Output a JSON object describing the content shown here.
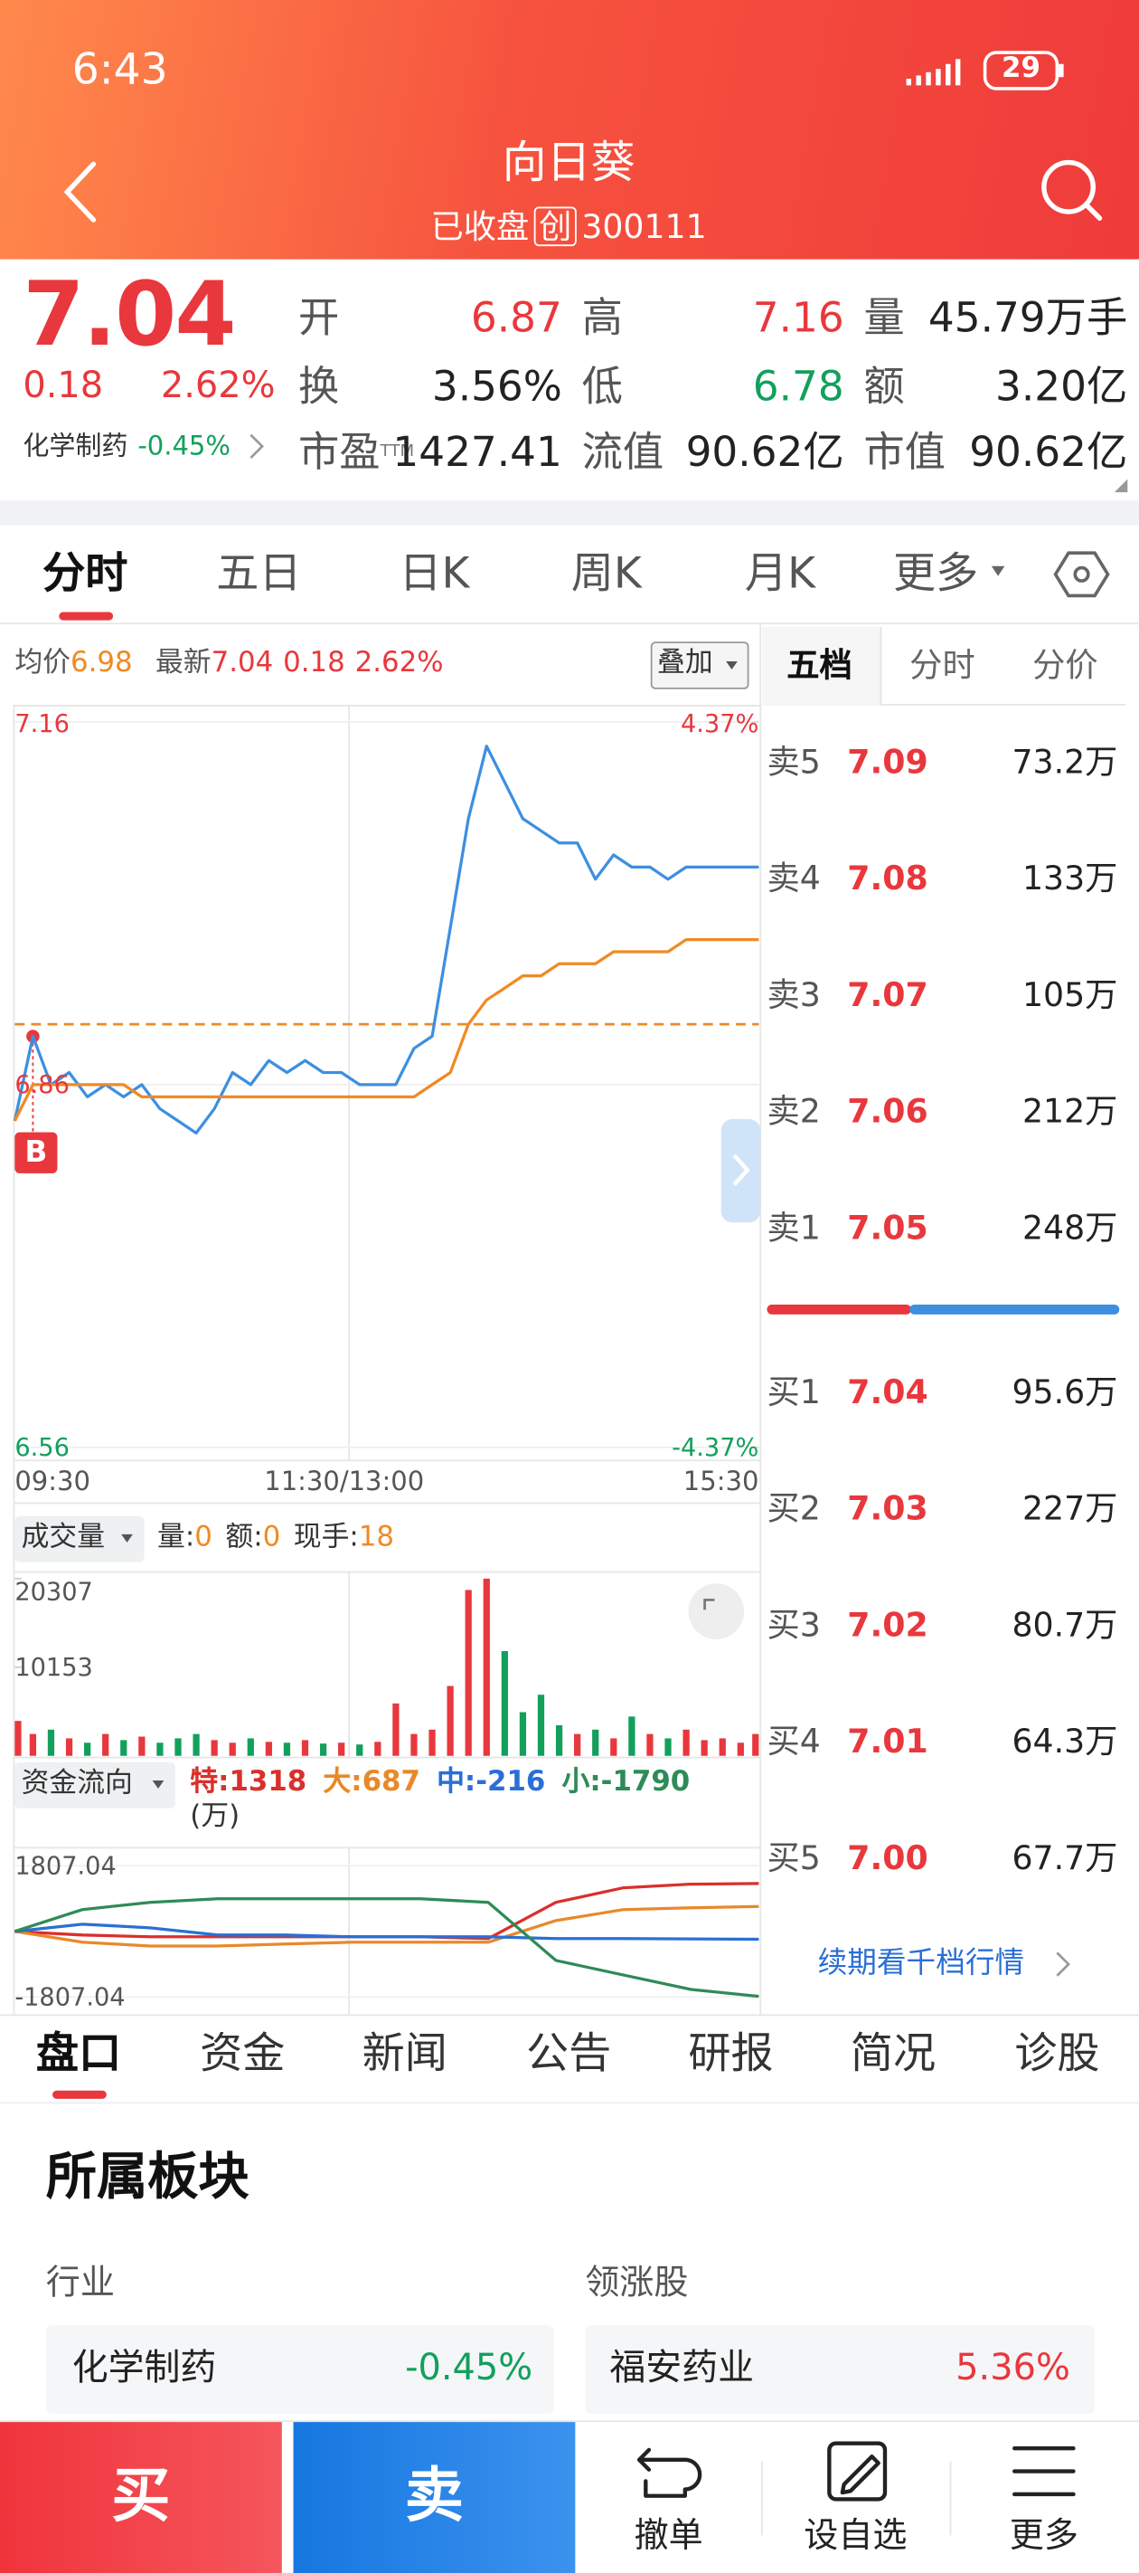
{
  "status_bar": {
    "time": "6:43",
    "battery": "29"
  },
  "header": {
    "title": "向日葵",
    "status": "已收盘",
    "board": "创",
    "code": "300111"
  },
  "quote": {
    "price": "7.04",
    "change": "0.18",
    "change_pct": "2.62%",
    "sector": "化学制药",
    "sector_change": "-0.45%",
    "up_color": "#e8383d",
    "down_color": "#12a05c",
    "fields": [
      {
        "label": "开",
        "value": "6.87",
        "tone": "up"
      },
      {
        "label": "高",
        "value": "7.16",
        "tone": "up"
      },
      {
        "label": "量",
        "value": "45.79万手"
      },
      {
        "label": "换",
        "value": "3.56%"
      },
      {
        "label": "低",
        "value": "6.78",
        "tone": "down"
      },
      {
        "label": "额",
        "value": "3.20亿"
      },
      {
        "label": "市盈",
        "sup": "TTM",
        "value": "1427.41"
      },
      {
        "label": "流值",
        "value": "90.62亿"
      },
      {
        "label": "市值",
        "value": "90.62亿"
      }
    ]
  },
  "chart_tabs": [
    "分时",
    "五日",
    "日K",
    "周K",
    "月K",
    "更多"
  ],
  "info_bar": {
    "avg_label": "均价",
    "avg": "6.98",
    "latest_label": "最新",
    "latest": "7.04",
    "change": "0.18",
    "change_pct": "2.62%",
    "overlay": "叠加"
  },
  "chart_data": [
    {
      "type": "line",
      "series": [
        {
          "color": "#3d8fe0",
          "values": [
            6.83,
            6.9,
            6.86,
            6.87,
            6.85,
            6.86,
            6.85,
            6.86,
            6.84,
            6.83,
            6.82,
            6.84,
            6.87,
            6.86,
            6.88,
            6.87,
            6.88,
            6.87,
            6.87,
            6.86,
            6.86,
            6.86,
            6.89,
            6.9,
            6.99,
            7.08,
            7.14,
            7.11,
            7.08,
            7.07,
            7.06,
            7.06,
            7.03,
            7.05,
            7.04,
            7.04,
            7.03,
            7.04,
            7.04,
            7.04,
            7.04,
            7.04
          ]
        },
        {
          "color": "#f08a24",
          "values": [
            6.83,
            6.86,
            6.86,
            6.86,
            6.86,
            6.86,
            6.86,
            6.85,
            6.85,
            6.85,
            6.85,
            6.85,
            6.85,
            6.85,
            6.85,
            6.85,
            6.85,
            6.85,
            6.85,
            6.85,
            6.85,
            6.85,
            6.85,
            6.86,
            6.87,
            6.91,
            6.93,
            6.94,
            6.95,
            6.95,
            6.96,
            6.96,
            6.96,
            6.97,
            6.97,
            6.97,
            6.97,
            6.98,
            6.98,
            6.98,
            6.98,
            6.98
          ]
        }
      ],
      "ylim": [
        6.56,
        7.16
      ],
      "yticks": [
        6.56,
        6.86,
        7.16
      ],
      "y2lim": [
        -4.37,
        4.37
      ],
      "y2ticks": [
        {
          "value": -4.37,
          "label": "-4.37%"
        },
        {
          "value": 4.37,
          "label": "4.37%"
        }
      ],
      "x_labels": [
        "09:30",
        "11:30/13:00",
        "15:30"
      ],
      "ref_line": 6.91,
      "ref_color": "#f08a24",
      "marker": "B"
    },
    {
      "type": "bar",
      "title": "成交量",
      "stats": [
        {
          "label": "量:",
          "value": "0"
        },
        {
          "label": "额:",
          "value": "0"
        },
        {
          "label": "现手:",
          "value": "18"
        }
      ],
      "values": [
        4000,
        2500,
        3000,
        2000,
        1500,
        2500,
        1800,
        2200,
        1500,
        2000,
        2500,
        1800,
        1500,
        2000,
        1600,
        1500,
        1800,
        1400,
        1500,
        1300,
        1600,
        6000,
        2500,
        3000,
        8000,
        19000,
        20307,
        12000,
        5000,
        7000,
        3500,
        2500,
        3000,
        2000,
        4500,
        2500,
        2000,
        3000,
        1800,
        2000,
        1500,
        2500
      ],
      "ylim": [
        0,
        20307
      ],
      "yticks": [
        10153,
        20307
      ],
      "up_color": "#e8383d",
      "down_color": "#12a05c"
    },
    {
      "type": "line",
      "title": "资金流向",
      "unit": "(万)",
      "series": [
        {
          "name": "特:",
          "color": "#d9302c",
          "values": [
            0,
            -100,
            -150,
            -150,
            -150,
            -150,
            -150,
            -200,
            800,
            1200,
            1300,
            1318
          ]
        },
        {
          "name": "大:",
          "color": "#e8892a",
          "values": [
            0,
            -300,
            -400,
            -400,
            -350,
            -300,
            -300,
            -300,
            300,
            600,
            650,
            687
          ]
        },
        {
          "name": "中:",
          "color": "#2a6fd6",
          "values": [
            0,
            200,
            100,
            -100,
            -100,
            -150,
            -150,
            -150,
            -200,
            -200,
            -210,
            -216
          ]
        },
        {
          "name": "小:",
          "color": "#2e8b57",
          "values": [
            0,
            600,
            800,
            900,
            900,
            900,
            900,
            800,
            -800,
            -1200,
            -1600,
            -1790
          ]
        }
      ],
      "ylim": [
        -1807.04,
        1807.04
      ],
      "yticks": [
        -1807.04,
        1807.04
      ]
    }
  ],
  "order_book": {
    "tabs": [
      "五档",
      "分时",
      "分价"
    ],
    "price_color": "#e8383d",
    "asks": [
      {
        "label": "卖5",
        "price": "7.09",
        "volume": "73.2万"
      },
      {
        "label": "卖4",
        "price": "7.08",
        "volume": "133万"
      },
      {
        "label": "卖3",
        "price": "7.07",
        "volume": "105万"
      },
      {
        "label": "卖2",
        "price": "7.06",
        "volume": "212万"
      },
      {
        "label": "卖1",
        "price": "7.05",
        "volume": "248万"
      }
    ],
    "bids": [
      {
        "label": "买1",
        "price": "7.04",
        "volume": "95.6万"
      },
      {
        "label": "买2",
        "price": "7.03",
        "volume": "227万"
      },
      {
        "label": "买3",
        "price": "7.02",
        "volume": "80.7万"
      },
      {
        "label": "买4",
        "price": "7.01",
        "volume": "64.3万"
      },
      {
        "label": "买5",
        "price": "7.00",
        "volume": "67.7万"
      }
    ],
    "more": "续期看千档行情"
  },
  "info_tabs": [
    "盘口",
    "资金",
    "新闻",
    "公告",
    "研报",
    "简况",
    "诊股"
  ],
  "sector_section": {
    "title": "所属板块",
    "industry_label": "行业",
    "leader_label": "领涨股",
    "industry": {
      "name": "化学制药",
      "change": "-0.45%"
    },
    "leader": {
      "name": "福安药业",
      "change": "5.36%"
    }
  },
  "bottom_bar": {
    "buy": "买",
    "sell": "卖",
    "actions": [
      "撤单",
      "设自选",
      "更多"
    ]
  }
}
